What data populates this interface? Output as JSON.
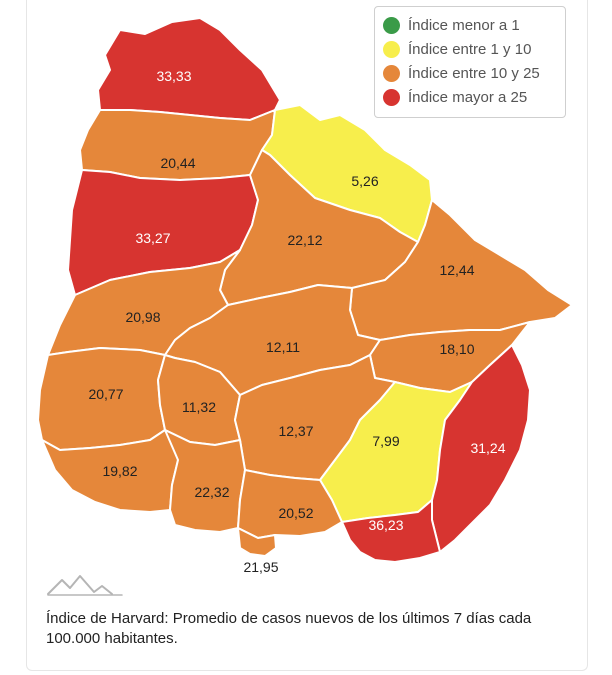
{
  "legend": {
    "items": [
      {
        "label": "Índice menor a 1",
        "color": "#3a9b48"
      },
      {
        "label": "Índice entre 1 y 10",
        "color": "#f7ee4c"
      },
      {
        "label": "Índice entre 10 y 25",
        "color": "#e5873a"
      },
      {
        "label": "Índice mayor a 25",
        "color": "#d73430"
      }
    ]
  },
  "map": {
    "departments": [
      {
        "value": "33,33",
        "color": "#d73430"
      },
      {
        "value": "20,44",
        "color": "#e5873a"
      },
      {
        "value": "5,26",
        "color": "#f7ee4c"
      },
      {
        "value": "33,27",
        "color": "#d73430"
      },
      {
        "value": "22,12",
        "color": "#e5873a"
      },
      {
        "value": "12,44",
        "color": "#e5873a"
      },
      {
        "value": "20,98",
        "color": "#e5873a"
      },
      {
        "value": "12,11",
        "color": "#e5873a"
      },
      {
        "value": "18,10",
        "color": "#e5873a"
      },
      {
        "value": "20,77",
        "color": "#e5873a"
      },
      {
        "value": "11,32",
        "color": "#e5873a"
      },
      {
        "value": "12,37",
        "color": "#e5873a"
      },
      {
        "value": "7,99",
        "color": "#f7ee4c"
      },
      {
        "value": "31,24",
        "color": "#d73430"
      },
      {
        "value": "19,82",
        "color": "#e5873a"
      },
      {
        "value": "22,32",
        "color": "#e5873a"
      },
      {
        "value": "20,52",
        "color": "#e5873a"
      },
      {
        "value": "36,23",
        "color": "#d73430"
      },
      {
        "value": "21,95",
        "color": "#e5873a"
      }
    ]
  },
  "caption": "Índice de Harvard: Promedio de casos nuevos de los últimos 7 días cada 100.000 habitantes.",
  "logo": {
    "icon": "mountain-logo-icon"
  }
}
